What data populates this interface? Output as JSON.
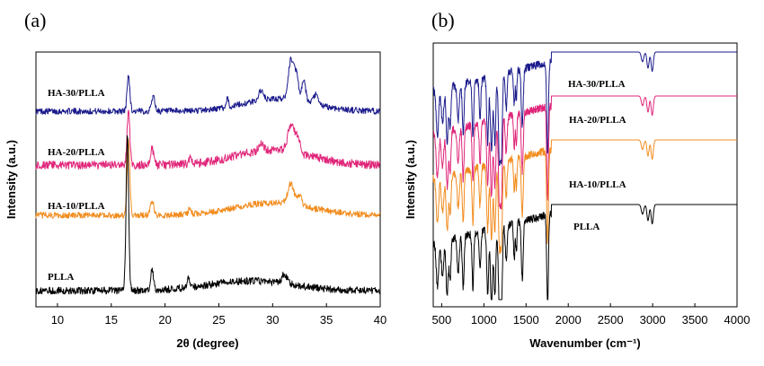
{
  "chart_data": [
    {
      "type": "line",
      "panel": "(a)",
      "xlabel": "2θ (degree)",
      "ylabel": "Intensity (a.u.)",
      "xlim": [
        8,
        40
      ],
      "xticks": [
        "10",
        "15",
        "20",
        "25",
        "30",
        "35",
        "40"
      ],
      "yticks": [],
      "grid": false,
      "legend": "labels beside curves",
      "series": [
        {
          "name": "HA-30/PLLA",
          "color": "#1a1a8c",
          "baseline": 3,
          "noise": 0.05,
          "peaks": [
            [
              16.6,
              1.3,
              0.18
            ],
            [
              18.9,
              0.55,
              0.22
            ],
            [
              25.8,
              0.4,
              0.12
            ],
            [
              28.9,
              0.35,
              0.3
            ],
            [
              31.7,
              1.4,
              0.35
            ],
            [
              32.2,
              0.9,
              0.3
            ],
            [
              32.9,
              0.75,
              0.25
            ],
            [
              34.0,
              0.35,
              0.3
            ]
          ],
          "humps": [
            [
              30.5,
              0.45,
              4.5
            ]
          ]
        },
        {
          "name": "HA-20/PLLA",
          "color": "#e0267a",
          "baseline": 2,
          "noise": 0.07,
          "peaks": [
            [
              16.6,
              2.0,
              0.18
            ],
            [
              18.8,
              0.6,
              0.22
            ],
            [
              22.3,
              0.2,
              0.2
            ],
            [
              28.9,
              0.3,
              0.3
            ],
            [
              31.7,
              1.0,
              0.4
            ],
            [
              32.3,
              0.6,
              0.3
            ]
          ],
          "humps": [
            [
              30.0,
              0.55,
              4.8
            ]
          ]
        },
        {
          "name": "HA-10/PLLA",
          "color": "#f28c1e",
          "baseline": 1,
          "noise": 0.05,
          "peaks": [
            [
              16.6,
              2.7,
              0.18
            ],
            [
              18.8,
              0.5,
              0.22
            ],
            [
              22.3,
              0.2,
              0.2
            ],
            [
              31.7,
              0.75,
              0.4
            ],
            [
              32.5,
              0.35,
              0.3
            ]
          ],
          "humps": [
            [
              30.0,
              0.45,
              5.0
            ]
          ]
        },
        {
          "name": "PLLA",
          "color": "#000000",
          "baseline": 0,
          "noise": 0.06,
          "peaks": [
            [
              16.5,
              5.6,
              0.17
            ],
            [
              18.8,
              0.75,
              0.18
            ],
            [
              22.2,
              0.4,
              0.15
            ],
            [
              31.1,
              0.35,
              0.35
            ]
          ],
          "humps": [
            [
              28.0,
              0.35,
              5.5
            ]
          ]
        }
      ]
    },
    {
      "type": "line",
      "panel": "(b)",
      "xlabel": "Wavenumber (cm⁻¹)",
      "ylabel": "Intensity (a.u.)",
      "xlim": [
        400,
        4000
      ],
      "xticks": [
        "500",
        "1000",
        "1500",
        "2000",
        "2500",
        "3000",
        "3500",
        "4000"
      ],
      "yticks": [],
      "grid": false,
      "legend": "labels beside curves",
      "series": [
        {
          "name": "HA-30/PLLA",
          "color": "#1a1a8c",
          "baseline": 3
        },
        {
          "name": "HA-20/PLLA",
          "color": "#e0267a",
          "baseline": 2
        },
        {
          "name": "HA-10/PLLA",
          "color": "#f28c1e",
          "baseline": 1
        },
        {
          "name": "PLLA",
          "color": "#000000",
          "baseline": 0
        }
      ],
      "bands": [
        [
          450,
          0.7,
          20
        ],
        [
          510,
          0.55,
          20
        ],
        [
          565,
          0.85,
          18
        ],
        [
          600,
          0.6,
          15
        ],
        [
          695,
          0.55,
          18
        ],
        [
          755,
          0.8,
          15
        ],
        [
          870,
          0.85,
          14
        ],
        [
          955,
          0.6,
          14
        ],
        [
          1045,
          1.0,
          16
        ],
        [
          1090,
          1.15,
          18
        ],
        [
          1130,
          1.05,
          16
        ],
        [
          1185,
          1.35,
          18
        ],
        [
          1210,
          1.1,
          14
        ],
        [
          1265,
          0.55,
          15
        ],
        [
          1360,
          0.55,
          12
        ],
        [
          1385,
          0.45,
          10
        ],
        [
          1455,
          0.9,
          16
        ],
        [
          1755,
          1.45,
          14
        ],
        [
          2880,
          0.15,
          20
        ],
        [
          2945,
          0.25,
          18
        ],
        [
          2995,
          0.3,
          18
        ]
      ]
    }
  ]
}
